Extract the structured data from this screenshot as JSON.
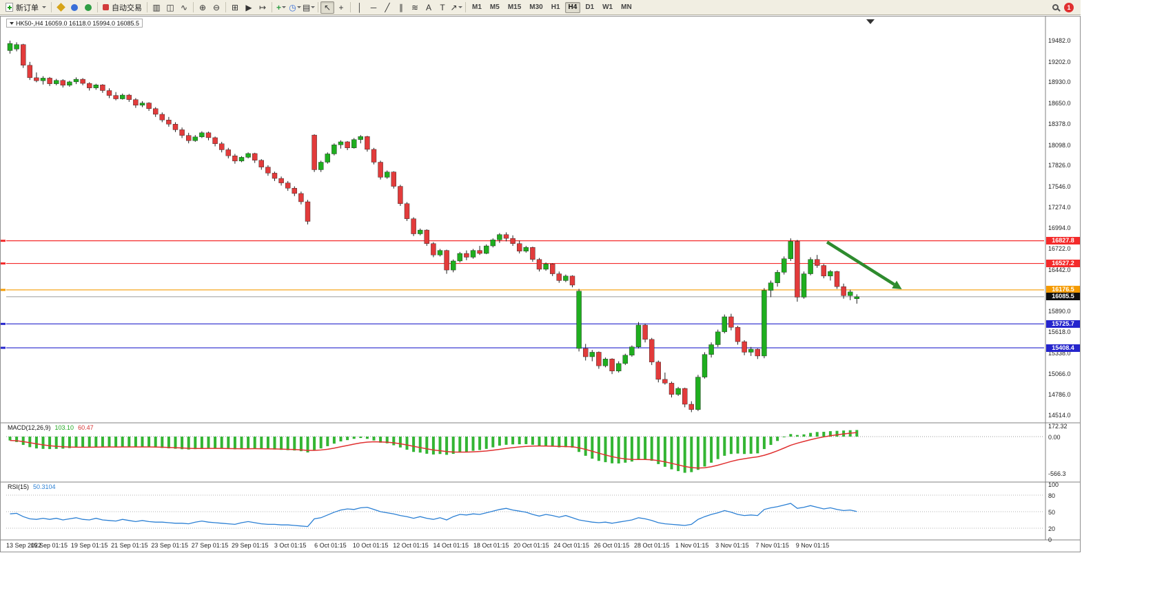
{
  "toolbar": {
    "new_order": "新订单",
    "auto_trading": "自动交易",
    "timeframes": [
      "M1",
      "M5",
      "M15",
      "M30",
      "H1",
      "H4",
      "D1",
      "W1",
      "MN"
    ],
    "active_timeframe": "H4",
    "notification_count": "1",
    "icons": {
      "bars": "▥",
      "candles": "◫",
      "line": "∿",
      "zoom_in": "⊕",
      "zoom_out": "⊖",
      "tile": "⊞",
      "auto_scroll": "▶",
      "chart_shift": "↦",
      "indicators": "+",
      "periods": "◷",
      "templates": "▤",
      "cursor": "↖",
      "crosshair": "+",
      "vline": "│",
      "hline": "─",
      "trendline": "╱",
      "channel": "∥",
      "fibonacci": "≋",
      "text": "A",
      "text_label": "T",
      "arrows": "↗"
    }
  },
  "chart": {
    "symbol_box": "HK50-,H4 16059.0 16118.0 15994.0 16085.5",
    "macd_label": {
      "name": "MACD(12,26,9)",
      "main_value": "103.10",
      "signal_value": "60.47"
    },
    "rsi_label": {
      "name": "RSI(15)",
      "value": "50.3104"
    }
  },
  "chart_data": {
    "type": "candlestick",
    "title": "HK50-,H4",
    "ohlc_current": {
      "open": 16059.0,
      "high": 16118.0,
      "low": 15994.0,
      "close": 16085.5
    },
    "ylim": [
      14514,
      19482
    ],
    "up_color": "#1fae1f",
    "down_color": "#e23b3b",
    "y_ticks": [
      "19482.0",
      "19202.0",
      "18930.0",
      "18650.0",
      "18378.0",
      "18098.0",
      "17826.0",
      "17546.0",
      "17274.0",
      "16994.0",
      "16722.0",
      "16442.0",
      "16170.0",
      "15890.0",
      "15618.0",
      "15338.0",
      "15066.0",
      "14786.0",
      "14514.0"
    ],
    "x_labels": [
      "13 Sep 2022",
      "15 Sep 01:15",
      "19 Sep 01:15",
      "21 Sep 01:15",
      "23 Sep 01:15",
      "27 Sep 01:15",
      "29 Sep 01:15",
      "3 Oct 01:15",
      "6 Oct 01:15",
      "10 Oct 01:15",
      "12 Oct 01:15",
      "14 Oct 01:15",
      "18 Oct 01:15",
      "20 Oct 01:15",
      "24 Oct 01:15",
      "26 Oct 01:15",
      "28 Oct 01:15",
      "1 Nov 01:15",
      "3 Nov 01:15",
      "7 Nov 01:15",
      "9 Nov 01:15"
    ],
    "hlines": [
      {
        "price": 16827.8,
        "label": "16827.8",
        "color": "#f42a2a"
      },
      {
        "price": 16527.2,
        "label": "16527.2",
        "color": "#f42a2a"
      },
      {
        "price": 16176.5,
        "label": "16176.5",
        "color": "#f59b00"
      },
      {
        "price": 15725.7,
        "label": "15725.7",
        "color": "#2525cd"
      },
      {
        "price": 15408.4,
        "label": "15408.4",
        "color": "#2525cd"
      }
    ],
    "current_price": {
      "price": 16085.5,
      "label": "16085.5",
      "line_color": "#9a9a9a",
      "badge_bg": "#101010"
    },
    "annotations": [
      {
        "type": "arrow",
        "color": "#2e8b2e",
        "x1_bar": 123.5,
        "y1_price": 16810,
        "x2_bar": 134.8,
        "y2_price": 16185
      }
    ],
    "candles": [
      [
        19350,
        19482,
        19310,
        19445
      ],
      [
        19370,
        19460,
        19340,
        19430
      ],
      [
        19430,
        19440,
        19120,
        19155
      ],
      [
        19155,
        19200,
        18960,
        18990
      ],
      [
        18990,
        19060,
        18930,
        18950
      ],
      [
        18950,
        19010,
        18900,
        18985
      ],
      [
        18985,
        19000,
        18880,
        18910
      ],
      [
        18910,
        18975,
        18890,
        18955
      ],
      [
        18955,
        18970,
        18860,
        18890
      ],
      [
        18890,
        18950,
        18870,
        18935
      ],
      [
        18935,
        18995,
        18905,
        18970
      ],
      [
        18970,
        18985,
        18890,
        18915
      ],
      [
        18915,
        18930,
        18820,
        18855
      ],
      [
        18855,
        18910,
        18830,
        18895
      ],
      [
        18895,
        18905,
        18790,
        18820
      ],
      [
        18820,
        18850,
        18720,
        18755
      ],
      [
        18755,
        18800,
        18690,
        18710
      ],
      [
        18710,
        18780,
        18700,
        18760
      ],
      [
        18760,
        18775,
        18670,
        18700
      ],
      [
        18700,
        18720,
        18590,
        18625
      ],
      [
        18625,
        18680,
        18600,
        18655
      ],
      [
        18655,
        18665,
        18550,
        18580
      ],
      [
        18580,
        18600,
        18470,
        18505
      ],
      [
        18505,
        18530,
        18400,
        18430
      ],
      [
        18430,
        18470,
        18340,
        18375
      ],
      [
        18375,
        18400,
        18270,
        18300
      ],
      [
        18300,
        18330,
        18190,
        18225
      ],
      [
        18225,
        18260,
        18120,
        18155
      ],
      [
        18155,
        18230,
        18140,
        18205
      ],
      [
        18205,
        18280,
        18190,
        18260
      ],
      [
        18260,
        18275,
        18160,
        18195
      ],
      [
        18195,
        18210,
        18080,
        18115
      ],
      [
        18115,
        18140,
        18000,
        18035
      ],
      [
        18035,
        18060,
        17920,
        17955
      ],
      [
        17955,
        17980,
        17850,
        17885
      ],
      [
        17885,
        17950,
        17870,
        17935
      ],
      [
        17935,
        18000,
        17920,
        17985
      ],
      [
        17985,
        17995,
        17860,
        17895
      ],
      [
        17895,
        17910,
        17770,
        17805
      ],
      [
        17805,
        17830,
        17690,
        17725
      ],
      [
        17725,
        17745,
        17620,
        17655
      ],
      [
        17655,
        17680,
        17560,
        17595
      ],
      [
        17595,
        17620,
        17490,
        17525
      ],
      [
        17525,
        17550,
        17420,
        17455
      ],
      [
        17455,
        17480,
        17310,
        17345
      ],
      [
        17345,
        17370,
        17045,
        17085
      ],
      [
        18230,
        18240,
        17740,
        17770
      ],
      [
        17770,
        17890,
        17740,
        17870
      ],
      [
        17870,
        18000,
        17850,
        17980
      ],
      [
        17980,
        18120,
        17960,
        18100
      ],
      [
        18100,
        18160,
        18050,
        18140
      ],
      [
        18140,
        18150,
        18030,
        18060
      ],
      [
        18060,
        18190,
        18050,
        18170
      ],
      [
        18170,
        18230,
        18120,
        18210
      ],
      [
        18210,
        18220,
        18010,
        18040
      ],
      [
        18040,
        18060,
        17840,
        17870
      ],
      [
        17870,
        17890,
        17640,
        17670
      ],
      [
        17670,
        17760,
        17650,
        17740
      ],
      [
        17740,
        17750,
        17520,
        17550
      ],
      [
        17550,
        17570,
        17290,
        17320
      ],
      [
        17320,
        17340,
        17090,
        17120
      ],
      [
        17120,
        17140,
        16890,
        16920
      ],
      [
        16920,
        16990,
        16900,
        16970
      ],
      [
        16970,
        16980,
        16760,
        16790
      ],
      [
        16790,
        16810,
        16610,
        16640
      ],
      [
        16640,
        16720,
        16620,
        16700
      ],
      [
        16700,
        16710,
        16390,
        16440
      ],
      [
        16440,
        16580,
        16410,
        16560
      ],
      [
        16560,
        16680,
        16540,
        16660
      ],
      [
        16660,
        16700,
        16570,
        16610
      ],
      [
        16610,
        16720,
        16590,
        16700
      ],
      [
        16700,
        16760,
        16640,
        16660
      ],
      [
        16660,
        16780,
        16650,
        16760
      ],
      [
        16760,
        16860,
        16740,
        16840
      ],
      [
        16840,
        16930,
        16800,
        16910
      ],
      [
        16910,
        16940,
        16820,
        16860
      ],
      [
        16860,
        16900,
        16760,
        16790
      ],
      [
        16790,
        16830,
        16660,
        16690
      ],
      [
        16690,
        16760,
        16670,
        16740
      ],
      [
        16740,
        16750,
        16550,
        16580
      ],
      [
        16580,
        16600,
        16420,
        16450
      ],
      [
        16450,
        16540,
        16430,
        16520
      ],
      [
        16520,
        16530,
        16360,
        16390
      ],
      [
        16390,
        16420,
        16270,
        16300
      ],
      [
        16300,
        16380,
        16280,
        16360
      ],
      [
        16360,
        16370,
        16210,
        16240
      ],
      [
        15400,
        16190,
        15360,
        16160
      ],
      [
        15400,
        15460,
        15240,
        15290
      ],
      [
        15290,
        15380,
        15230,
        15350
      ],
      [
        15350,
        15360,
        15130,
        15170
      ],
      [
        15170,
        15280,
        15150,
        15260
      ],
      [
        15260,
        15270,
        15060,
        15100
      ],
      [
        15100,
        15230,
        15080,
        15200
      ],
      [
        15200,
        15330,
        15180,
        15310
      ],
      [
        15310,
        15440,
        15290,
        15420
      ],
      [
        15420,
        15750,
        15400,
        15710
      ],
      [
        15710,
        15730,
        15480,
        15520
      ],
      [
        15520,
        15540,
        15180,
        15220
      ],
      [
        15220,
        15240,
        14950,
        14990
      ],
      [
        14990,
        15080,
        14920,
        14940
      ],
      [
        14940,
        14960,
        14750,
        14790
      ],
      [
        14790,
        14890,
        14770,
        14870
      ],
      [
        14870,
        14880,
        14620,
        14660
      ],
      [
        14660,
        14700,
        14555,
        14590
      ],
      [
        14590,
        15050,
        14570,
        15020
      ],
      [
        15020,
        15350,
        15000,
        15320
      ],
      [
        15320,
        15480,
        15280,
        15450
      ],
      [
        15450,
        15650,
        15420,
        15620
      ],
      [
        15620,
        15850,
        15600,
        15820
      ],
      [
        15820,
        15860,
        15640,
        15680
      ],
      [
        15680,
        15700,
        15450,
        15490
      ],
      [
        15490,
        15510,
        15310,
        15350
      ],
      [
        15350,
        15420,
        15300,
        15390
      ],
      [
        15390,
        15400,
        15260,
        15300
      ],
      [
        15300,
        16200,
        15270,
        16170
      ],
      [
        16170,
        16300,
        16080,
        16270
      ],
      [
        16270,
        16440,
        16220,
        16410
      ],
      [
        16410,
        16620,
        16380,
        16590
      ],
      [
        16590,
        16860,
        16560,
        16820
      ],
      [
        16820,
        16840,
        16020,
        16080
      ],
      [
        16080,
        16420,
        16060,
        16390
      ],
      [
        16390,
        16610,
        16370,
        16580
      ],
      [
        16580,
        16640,
        16470,
        16500
      ],
      [
        16500,
        16520,
        16330,
        16360
      ],
      [
        16360,
        16440,
        16300,
        16420
      ],
      [
        16420,
        16430,
        16190,
        16220
      ],
      [
        16220,
        16260,
        16060,
        16100
      ],
      [
        16100,
        16180,
        16040,
        16150
      ],
      [
        16059,
        16118,
        15994,
        16085.5
      ]
    ],
    "macd": {
      "params": "12,26,9",
      "color": "#33b533",
      "signal_color": "#e03030",
      "axis_labels": [
        "172.32",
        "0.00",
        "-566.3"
      ],
      "last_main": 103.1,
      "last_signal": 60.47,
      "histogram": [
        -60,
        -85,
        -130,
        -165,
        -185,
        -192,
        -195,
        -192,
        -188,
        -180,
        -172,
        -168,
        -165,
        -158,
        -156,
        -160,
        -165,
        -160,
        -158,
        -163,
        -160,
        -163,
        -170,
        -178,
        -184,
        -190,
        -197,
        -202,
        -196,
        -186,
        -181,
        -182,
        -187,
        -194,
        -199,
        -195,
        -188,
        -186,
        -190,
        -196,
        -202,
        -207,
        -212,
        -217,
        -228,
        -248,
        -215,
        -185,
        -150,
        -110,
        -75,
        -55,
        -35,
        -22,
        -35,
        -60,
        -95,
        -105,
        -135,
        -170,
        -205,
        -240,
        -250,
        -268,
        -280,
        -272,
        -285,
        -270,
        -250,
        -238,
        -222,
        -210,
        -192,
        -168,
        -142,
        -128,
        -122,
        -120,
        -118,
        -128,
        -145,
        -148,
        -158,
        -168,
        -165,
        -172,
        -240,
        -300,
        -345,
        -380,
        -400,
        -418,
        -420,
        -408,
        -390,
        -362,
        -355,
        -378,
        -430,
        -472,
        -512,
        -540,
        -566,
        -556,
        -520,
        -468,
        -408,
        -352,
        -300,
        -272,
        -265,
        -272,
        -268,
        -262,
        -195,
        -130,
        -68,
        -10,
        40,
        25,
        35,
        58,
        72,
        75,
        85,
        90,
        95,
        100,
        103.1
      ]
    },
    "rsi": {
      "params": "15",
      "color": "#2a7fd4",
      "levels": [
        80,
        50,
        20
      ],
      "axis_labels": [
        "100",
        "80",
        "50",
        "20",
        "0"
      ],
      "last": 50.3104,
      "values": [
        46,
        47,
        41,
        37,
        36,
        38,
        36,
        38,
        35,
        37,
        39,
        36,
        35,
        38,
        35,
        34,
        33,
        36,
        34,
        32,
        34,
        32,
        31,
        31,
        30,
        29,
        29,
        28,
        31,
        33,
        31,
        30,
        29,
        28,
        27,
        30,
        32,
        30,
        28,
        27,
        27,
        26,
        26,
        25,
        24,
        23,
        37,
        39,
        44,
        49,
        53,
        55,
        54,
        57,
        58,
        54,
        50,
        48,
        46,
        43,
        41,
        38,
        41,
        38,
        36,
        39,
        35,
        41,
        45,
        44,
        46,
        45,
        48,
        51,
        54,
        56,
        53,
        51,
        49,
        45,
        42,
        45,
        43,
        40,
        43,
        39,
        35,
        33,
        31,
        30,
        31,
        29,
        31,
        33,
        35,
        39,
        37,
        34,
        30,
        28,
        27,
        26,
        25,
        27,
        36,
        41,
        45,
        48,
        52,
        49,
        45,
        43,
        44,
        43,
        54,
        57,
        59,
        62,
        65,
        56,
        58,
        61,
        58,
        55,
        57,
        54,
        52,
        53,
        50.3
      ]
    }
  }
}
